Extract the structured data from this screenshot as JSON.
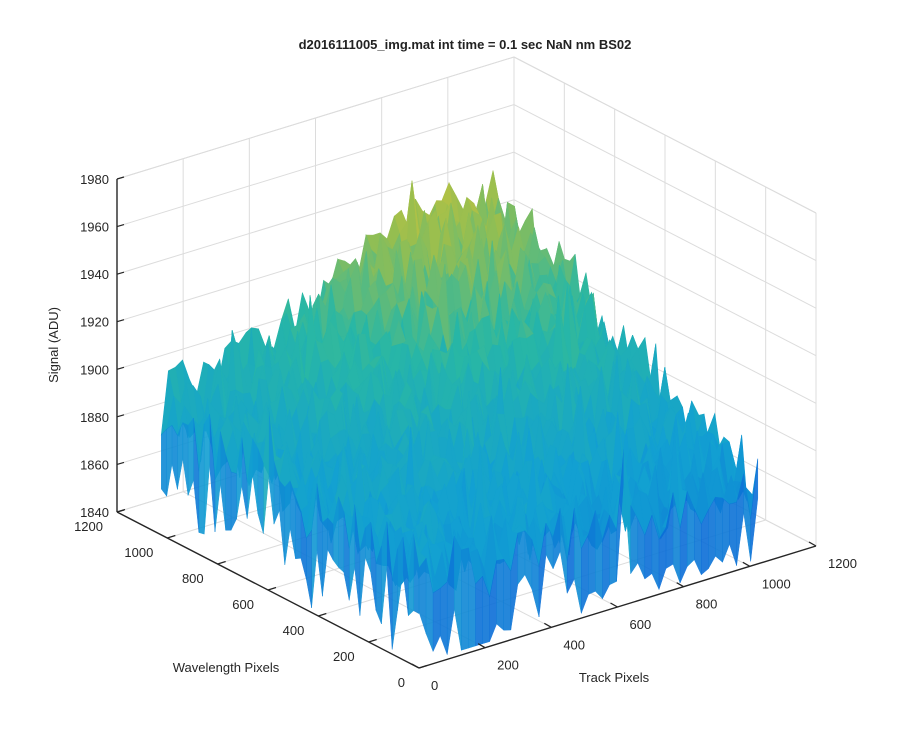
{
  "chart_data": {
    "type": "surface",
    "title": "d2016111005_img.mat int time = 0.1 sec  NaN nm BS02",
    "xlabel": "Track Pixels",
    "ylabel": "Wavelength Pixels",
    "zlabel": "Signal (ADU)",
    "xlim": [
      0,
      1200
    ],
    "ylim": [
      0,
      1200
    ],
    "zlim": [
      1840,
      1980
    ],
    "x_ticks": [
      "0",
      "200",
      "400",
      "600",
      "800",
      "1000",
      "1200"
    ],
    "y_ticks": [
      "0",
      "200",
      "400",
      "600",
      "800",
      "1000",
      "1200"
    ],
    "z_ticks": [
      "1840",
      "1860",
      "1880",
      "1900",
      "1920",
      "1940",
      "1960",
      "1980"
    ],
    "grid": true,
    "colormap": "parula",
    "colors": {
      "low": "#0b72d8",
      "mid": "#20b5b0",
      "high": "#f2c431",
      "axis": "#262626",
      "grid": "#dcdcdc"
    },
    "surface": {
      "x_range": [
        0,
        1024
      ],
      "y_range": [
        0,
        1024
      ],
      "signal_min": 1845,
      "signal_max": 1968,
      "corner_levels": {
        "x0_y0": 1880,
        "x1024_y0": 1872,
        "x0_y1024": 1890,
        "x1024_y1024": 1915
      },
      "peak_level": 1945
    }
  }
}
